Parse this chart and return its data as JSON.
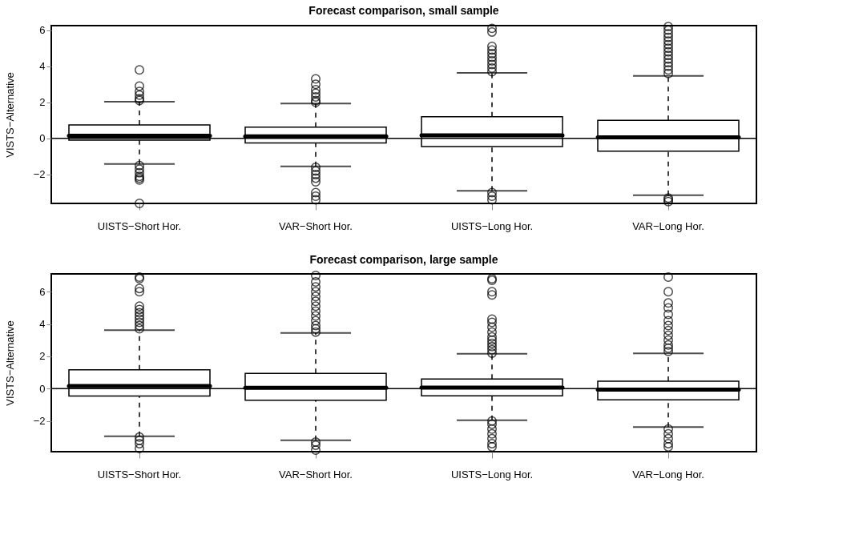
{
  "chart_data": [
    {
      "type": "box",
      "title": "Forecast comparison, small sample",
      "ylabel": "VISTS−Alternative",
      "categories": [
        "UISTS−Short Hor.",
        "VAR−Short Hor.",
        "UISTS−Long Hor.",
        "VAR−Long Hor."
      ],
      "boxes": [
        {
          "low": -1.42,
          "q1": -0.1,
          "median": 0.15,
          "q3": 0.75,
          "high": 2.03,
          "outliers": [
            3.8,
            2.9,
            2.6,
            2.4,
            2.2,
            2.1,
            -1.5,
            -1.7,
            -1.9,
            -2.1,
            -2.2,
            -2.3,
            -3.6
          ]
        },
        {
          "low": -1.55,
          "q1": -0.25,
          "median": 0.12,
          "q3": 0.63,
          "high": 1.93,
          "outliers": [
            3.3,
            3.0,
            2.7,
            2.5,
            2.3,
            2.1,
            2.0,
            -1.6,
            -1.8,
            -2.0,
            -2.2,
            -2.4,
            -3.0,
            -3.2,
            -3.4
          ]
        },
        {
          "low": -2.9,
          "q1": -0.45,
          "median": 0.17,
          "q3": 1.2,
          "high": 3.63,
          "outliers": [
            3.7,
            3.9,
            4.1,
            4.3,
            4.5,
            4.7,
            4.9,
            5.1,
            5.9,
            6.1,
            -3.0,
            -3.2,
            -3.4
          ]
        },
        {
          "low": -3.15,
          "q1": -0.7,
          "median": 0.06,
          "q3": 1.0,
          "high": 3.47,
          "outliers": [
            3.6,
            3.8,
            4.0,
            4.2,
            4.4,
            4.6,
            4.8,
            5.0,
            5.2,
            5.4,
            5.6,
            5.8,
            6.0,
            6.2,
            -3.3,
            -3.4,
            -3.5
          ]
        }
      ],
      "ylim": [
        -3.6,
        6.25
      ],
      "yticks": [
        {
          "value": -2,
          "label": "−2"
        },
        0,
        2,
        4,
        6
      ],
      "ref_lines": [
        {
          "axis": "y",
          "value": 0
        }
      ],
      "grid": false
    },
    {
      "type": "box",
      "title": "Forecast comparison, large sample",
      "ylabel": "VISTS−Alternative",
      "categories": [
        "UISTS−Short Hor.",
        "VAR−Short Hor.",
        "UISTS−Long Hor.",
        "VAR−Long Hor."
      ],
      "boxes": [
        {
          "low": -2.94,
          "q1": -0.46,
          "median": 0.16,
          "q3": 1.17,
          "high": 3.62,
          "outliers": [
            3.7,
            3.9,
            4.1,
            4.3,
            4.5,
            4.7,
            4.9,
            5.1,
            6.0,
            6.2,
            6.8,
            6.9,
            -3.0,
            -3.2,
            -3.4,
            -3.7
          ]
        },
        {
          "low": -3.19,
          "q1": -0.72,
          "median": 0.05,
          "q3": 0.94,
          "high": 3.45,
          "outliers": [
            3.5,
            3.7,
            3.9,
            4.2,
            4.5,
            4.8,
            5.1,
            5.4,
            5.7,
            6.0,
            6.3,
            6.6,
            7.0,
            -3.3,
            -3.5,
            -3.8
          ]
        },
        {
          "low": -1.96,
          "q1": -0.44,
          "median": 0.07,
          "q3": 0.6,
          "high": 2.16,
          "outliers": [
            2.2,
            2.4,
            2.6,
            2.8,
            3.0,
            3.2,
            3.5,
            3.8,
            4.1,
            4.3,
            5.8,
            6.0,
            6.7,
            6.8,
            -2.0,
            -2.2,
            -2.5,
            -2.8,
            -3.1,
            -3.4,
            -3.6
          ]
        },
        {
          "low": -2.38,
          "q1": -0.69,
          "median": -0.06,
          "q3": 0.46,
          "high": 2.18,
          "outliers": [
            2.3,
            2.5,
            2.7,
            3.0,
            3.3,
            3.6,
            3.9,
            4.2,
            4.6,
            5.0,
            5.3,
            6.0,
            6.9,
            -2.5,
            -2.8,
            -3.1,
            -3.4,
            -3.6
          ]
        }
      ],
      "ylim": [
        -3.9,
        7.1
      ],
      "yticks": [
        {
          "value": -2,
          "label": "−2"
        },
        0,
        2,
        4,
        6
      ],
      "ref_lines": [
        {
          "axis": "y",
          "value": 0
        }
      ],
      "grid": false
    }
  ]
}
